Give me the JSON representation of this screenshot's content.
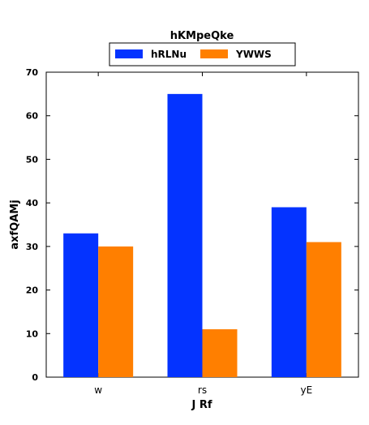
{
  "chart_data": {
    "type": "bar",
    "title": "hKMpeQke",
    "xlabel": "J Rf",
    "ylabel": "axfQAMj",
    "categories": [
      "w",
      "rs",
      "yE"
    ],
    "series": [
      {
        "name": "hRLNu",
        "values": [
          33,
          65,
          39
        ],
        "color": "#0433ff"
      },
      {
        "name": "YWWS",
        "values": [
          30,
          11,
          31
        ],
        "color": "#ff7f00"
      }
    ],
    "ylim": [
      0,
      70
    ],
    "yticks": [
      0,
      10,
      20,
      30,
      40,
      50,
      60,
      70
    ],
    "grid": false,
    "legend_position": "top-center"
  }
}
